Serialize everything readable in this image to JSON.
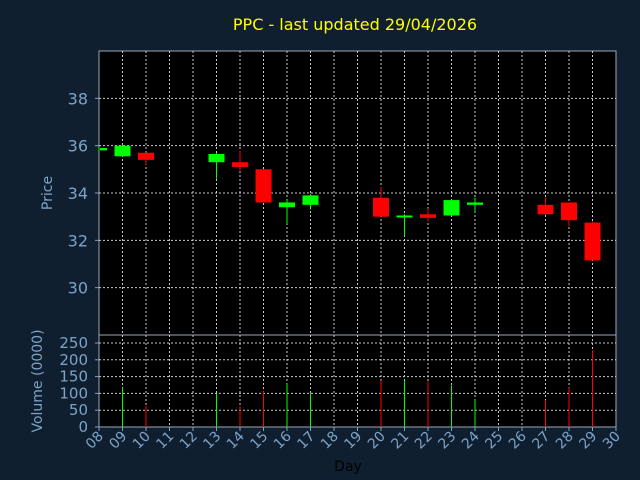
{
  "chart_data": [
    {
      "type": "candlestick",
      "title": "PPC - last updated 29/04/2026",
      "ylabel": "Price",
      "ylim": [
        28,
        40
      ],
      "yticks": [
        30,
        32,
        34,
        36,
        38
      ],
      "x_domain": [
        8,
        30
      ],
      "x_ticks": [
        8,
        9,
        10,
        11,
        12,
        13,
        14,
        15,
        16,
        17,
        18,
        19,
        20,
        21,
        22,
        23,
        24,
        25,
        26,
        27,
        28,
        29,
        30
      ],
      "x_tick_labels": [
        "08",
        "09",
        "10",
        "11",
        "12",
        "13",
        "14",
        "15",
        "16",
        "17",
        "18",
        "19",
        "20",
        "21",
        "22",
        "23",
        "24",
        "25",
        "26",
        "27",
        "28",
        "29",
        "30"
      ],
      "colors": {
        "up": "#00ff00",
        "down": "#ff0000",
        "background": "#0f1f30",
        "plot_bg": "#000000",
        "grid": "#c8c8c8",
        "text": "#7da3c8",
        "title": "#ffff00"
      },
      "candles": [
        {
          "day": 8,
          "open": 35.8,
          "high": 35.95,
          "low": 35.8,
          "close": 35.9
        },
        {
          "day": 9,
          "open": 35.55,
          "high": 36.05,
          "low": 35.55,
          "close": 36.0
        },
        {
          "day": 10,
          "open": 35.7,
          "high": 35.7,
          "low": 35.2,
          "close": 35.4
        },
        {
          "day": 13,
          "open": 35.3,
          "high": 35.7,
          "low": 34.6,
          "close": 35.65
        },
        {
          "day": 14,
          "open": 35.3,
          "high": 35.8,
          "low": 34.95,
          "close": 35.1
        },
        {
          "day": 15,
          "open": 35.0,
          "high": 35.0,
          "low": 33.6,
          "close": 33.6
        },
        {
          "day": 16,
          "open": 33.4,
          "high": 33.7,
          "low": 32.7,
          "close": 33.6
        },
        {
          "day": 17,
          "open": 33.5,
          "high": 33.95,
          "low": 33.3,
          "close": 33.9
        },
        {
          "day": 20,
          "open": 33.8,
          "high": 34.25,
          "low": 33.0,
          "close": 33.0
        },
        {
          "day": 21,
          "open": 33.0,
          "high": 33.1,
          "low": 32.2,
          "close": 33.05
        },
        {
          "day": 22,
          "open": 33.1,
          "high": 33.35,
          "low": 32.8,
          "close": 32.95
        },
        {
          "day": 23,
          "open": 33.05,
          "high": 33.7,
          "low": 33.05,
          "close": 33.7
        },
        {
          "day": 24,
          "open": 33.5,
          "high": 33.8,
          "low": 33.2,
          "close": 33.6
        },
        {
          "day": 27,
          "open": 33.5,
          "high": 33.8,
          "low": 33.1,
          "close": 33.1
        },
        {
          "day": 28,
          "open": 33.6,
          "high": 33.6,
          "low": 32.6,
          "close": 32.85
        },
        {
          "day": 29,
          "open": 32.75,
          "high": 32.8,
          "low": 31.15,
          "close": 31.15
        }
      ]
    },
    {
      "type": "bar",
      "ylabel": "Volume (0000)",
      "xlabel": "Day",
      "ylim": [
        0,
        250
      ],
      "yticks": [
        0,
        50,
        100,
        150,
        200,
        250
      ],
      "bars": [
        {
          "day": 9,
          "value": 118,
          "direction": "up"
        },
        {
          "day": 10,
          "value": 62,
          "direction": "down"
        },
        {
          "day": 13,
          "value": 100,
          "direction": "up"
        },
        {
          "day": 14,
          "value": 62,
          "direction": "down"
        },
        {
          "day": 15,
          "value": 108,
          "direction": "down"
        },
        {
          "day": 16,
          "value": 130,
          "direction": "up"
        },
        {
          "day": 17,
          "value": 100,
          "direction": "up"
        },
        {
          "day": 20,
          "value": 138,
          "direction": "down"
        },
        {
          "day": 21,
          "value": 138,
          "direction": "up"
        },
        {
          "day": 22,
          "value": 135,
          "direction": "down"
        },
        {
          "day": 23,
          "value": 123,
          "direction": "up"
        },
        {
          "day": 24,
          "value": 82,
          "direction": "up"
        },
        {
          "day": 27,
          "value": 80,
          "direction": "down"
        },
        {
          "day": 28,
          "value": 118,
          "direction": "down"
        },
        {
          "day": 29,
          "value": 228,
          "direction": "down"
        }
      ]
    }
  ]
}
